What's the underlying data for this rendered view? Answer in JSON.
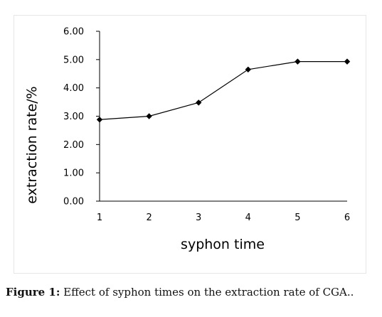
{
  "caption": {
    "label": "Figure 1:",
    "text": "Effect of syphon times on the extraction rate of CGA.."
  },
  "chart_data": {
    "type": "line",
    "title": "",
    "xlabel": "syphon time",
    "ylabel": "extraction rate/%",
    "x": [
      1,
      2,
      3,
      4,
      5,
      6
    ],
    "x_tick_labels": [
      "1",
      "2",
      "3",
      "4",
      "5",
      "6"
    ],
    "ylim": [
      0,
      6
    ],
    "y_ticks": [
      0,
      1,
      2,
      3,
      4,
      5,
      6
    ],
    "y_tick_labels": [
      "0.00",
      "1.00",
      "2.00",
      "3.00",
      "4.00",
      "5.00",
      "6.00"
    ],
    "grid": false,
    "series": [
      {
        "values": [
          2.88,
          3.0,
          3.48,
          4.65,
          4.93,
          4.93
        ],
        "color": "#000000",
        "marker": "diamond"
      }
    ]
  }
}
